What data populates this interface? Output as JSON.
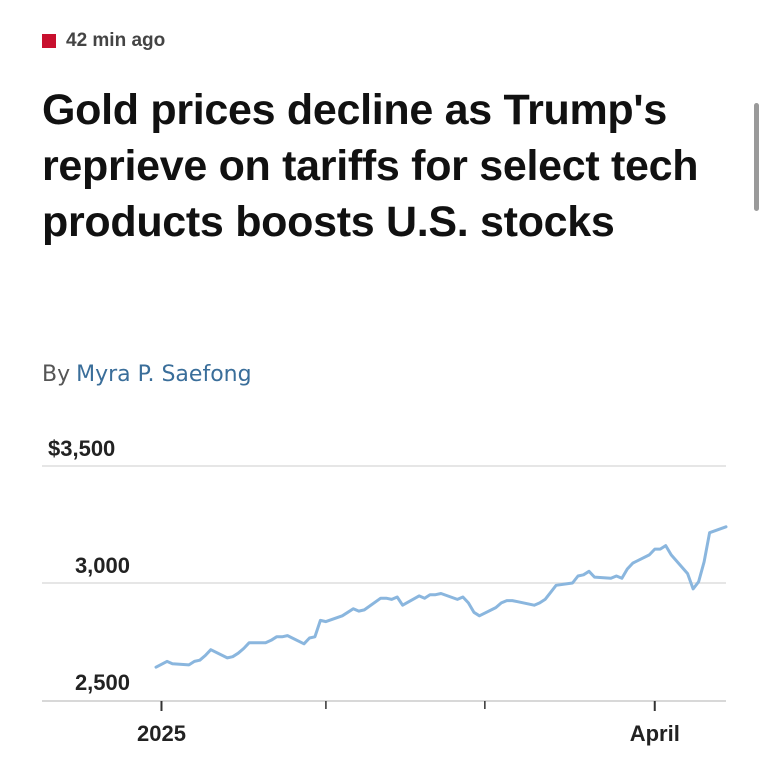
{
  "article": {
    "timestamp": "42 min ago",
    "headline": "Gold prices decline as Trump's reprieve on tariffs for select tech products boosts U.S. stocks",
    "byline_prefix": "By",
    "author": "Myra P. Saefong"
  },
  "colors": {
    "accent": "#c8102e",
    "line": "#8ab6de",
    "link": "#3a6e9a"
  },
  "chart_data": {
    "type": "line",
    "title": "",
    "xlabel": "",
    "ylabel": "",
    "ylim": [
      2450,
      3550
    ],
    "y_ticks": [
      {
        "value": 3500,
        "label": "$3,500"
      },
      {
        "value": 3000,
        "label": "3,000"
      },
      {
        "value": 2500,
        "label": "2,500"
      }
    ],
    "x_labels": [
      {
        "date": "2025-01-01",
        "label": "2025"
      },
      {
        "date": "2025-04-01",
        "label": "April"
      }
    ],
    "x_range": [
      "2024-12-31",
      "2025-04-14"
    ],
    "minor_ticks": [
      "2025-01-31",
      "2025-03-01"
    ],
    "grid": true,
    "series": [
      {
        "name": "",
        "x": [
          "2024-12-31",
          "2025-01-02",
          "2025-01-03",
          "2025-01-06",
          "2025-01-07",
          "2025-01-08",
          "2025-01-09",
          "2025-01-10",
          "2025-01-13",
          "2025-01-14",
          "2025-01-15",
          "2025-01-16",
          "2025-01-17",
          "2025-01-20",
          "2025-01-21",
          "2025-01-22",
          "2025-01-23",
          "2025-01-24",
          "2025-01-27",
          "2025-01-28",
          "2025-01-29",
          "2025-01-30",
          "2025-01-31",
          "2025-02-03",
          "2025-02-04",
          "2025-02-05",
          "2025-02-06",
          "2025-02-07",
          "2025-02-10",
          "2025-02-11",
          "2025-02-12",
          "2025-02-13",
          "2025-02-14",
          "2025-02-17",
          "2025-02-18",
          "2025-02-19",
          "2025-02-20",
          "2025-02-21",
          "2025-02-24",
          "2025-02-25",
          "2025-02-26",
          "2025-02-27",
          "2025-02-28",
          "2025-03-03",
          "2025-03-04",
          "2025-03-05",
          "2025-03-06",
          "2025-03-07",
          "2025-03-10",
          "2025-03-11",
          "2025-03-12",
          "2025-03-13",
          "2025-03-14",
          "2025-03-17",
          "2025-03-18",
          "2025-03-19",
          "2025-03-20",
          "2025-03-21",
          "2025-03-24",
          "2025-03-25",
          "2025-03-26",
          "2025-03-27",
          "2025-03-28",
          "2025-03-31",
          "2025-04-01",
          "2025-04-02",
          "2025-04-03",
          "2025-04-04",
          "2025-04-07",
          "2025-04-08",
          "2025-04-09",
          "2025-04-10",
          "2025-04-11",
          "2025-04-14"
        ],
        "values": [
          2640,
          2665,
          2655,
          2650,
          2665,
          2670,
          2690,
          2715,
          2680,
          2685,
          2700,
          2720,
          2745,
          2745,
          2755,
          2770,
          2770,
          2775,
          2740,
          2765,
          2770,
          2840,
          2835,
          2860,
          2875,
          2890,
          2880,
          2885,
          2935,
          2935,
          2930,
          2940,
          2905,
          2945,
          2935,
          2950,
          2950,
          2955,
          2930,
          2940,
          2915,
          2875,
          2860,
          2895,
          2915,
          2925,
          2925,
          2920,
          2905,
          2915,
          2930,
          2960,
          2990,
          3000,
          3030,
          3035,
          3050,
          3025,
          3020,
          3030,
          3020,
          3060,
          3085,
          3120,
          3145,
          3145,
          3160,
          3120,
          3040,
          2975,
          3005,
          3090,
          3215,
          3240
        ]
      }
    ]
  }
}
